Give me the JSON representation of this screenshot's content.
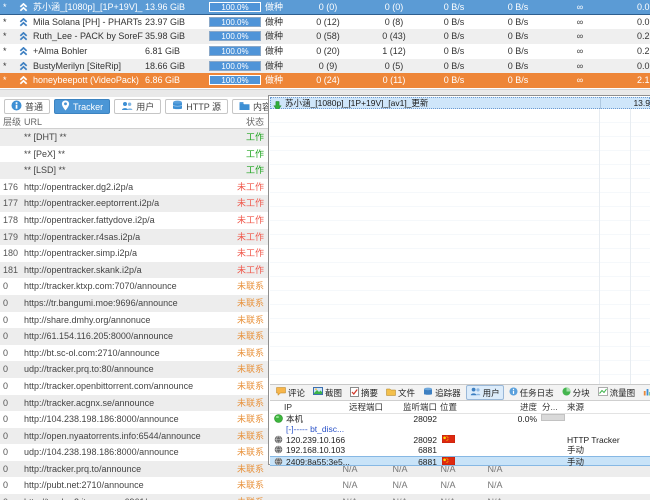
{
  "colors": {
    "selected_row_blue": "#5b9bd5",
    "highlight_row_orange": "#ee8638",
    "progress_fill_blue": "#4f94d8",
    "tab_selected_blue": "#4b96d6",
    "status_working_green": "#1da41d",
    "status_not_working_red": "#f0574a",
    "status_not_contacted_orange": "#e8923c",
    "overlay_selected_blue": "#c8e3f8"
  },
  "main_window": {
    "torrent_table": {
      "rows": [
        {
          "flag": "*",
          "name": "苏小涵_[1080p]_[1P+19V]_[a...",
          "size": "13.96 GiB",
          "progress": "100.0%",
          "status": "做种",
          "seeds": "0 (0)",
          "peers": "0 (0)",
          "down_speed": "0 B/s",
          "up_speed": "0 B/s",
          "eta": "∞",
          "ratio": "0.0",
          "state": "selected"
        },
        {
          "flag": "*",
          "name": "Mila Solana [PH] - PHARTs by...",
          "size": "23.97 GiB",
          "progress": "100.0%",
          "status": "做种",
          "seeds": "0 (12)",
          "peers": "0 (8)",
          "down_speed": "0 B/s",
          "up_speed": "0 B/s",
          "eta": "∞",
          "ratio": "0.0",
          "state": "white"
        },
        {
          "flag": "*",
          "name": "Ruth_Lee - PACK by SoreFor...",
          "size": "35.98 GiB",
          "progress": "100.0%",
          "status": "做种",
          "seeds": "0 (58)",
          "peers": "0 (43)",
          "down_speed": "0 B/s",
          "up_speed": "0 B/s",
          "eta": "∞",
          "ratio": "0.2",
          "state": "gray"
        },
        {
          "flag": "*",
          "name": "+Alma Bohler",
          "size": "6.81 GiB",
          "progress": "100.0%",
          "status": "做种",
          "seeds": "0 (20)",
          "peers": "1 (12)",
          "down_speed": "0 B/s",
          "up_speed": "0 B/s",
          "eta": "∞",
          "ratio": "0.2",
          "state": "white"
        },
        {
          "flag": "*",
          "name": "BustyMerilyn [SiteRip]",
          "size": "18.66 GiB",
          "progress": "100.0%",
          "status": "做种",
          "seeds": "0 (9)",
          "peers": "0 (5)",
          "down_speed": "0 B/s",
          "up_speed": "0 B/s",
          "eta": "∞",
          "ratio": "0.0",
          "state": "gray"
        },
        {
          "flag": "*",
          "name": "honeybeepott (VideoPack)",
          "size": "6.86 GiB",
          "progress": "100.0%",
          "status": "做种",
          "seeds": "0 (24)",
          "peers": "0 (11)",
          "down_speed": "0 B/s",
          "up_speed": "0 B/s",
          "eta": "∞",
          "ratio": "2.1",
          "state": "orange"
        }
      ]
    },
    "detail_tabs": [
      {
        "label": "普通",
        "icon": "info-icon",
        "selected": false
      },
      {
        "label": "Tracker",
        "icon": "pin-icon",
        "selected": true
      },
      {
        "label": "用户",
        "icon": "peers-icon",
        "selected": false
      },
      {
        "label": "HTTP 源",
        "icon": "http-sources-icon",
        "selected": false
      },
      {
        "label": "内容",
        "icon": "content-icon",
        "selected": false
      }
    ],
    "tracker_table": {
      "headers": {
        "tier": "层级",
        "url": "URL",
        "status": "状态"
      },
      "na_text": "N/A",
      "rows": [
        {
          "tier": "",
          "url": "** [DHT] **",
          "status": "工作",
          "status_type": "working",
          "na": false
        },
        {
          "tier": "",
          "url": "** [PeX] **",
          "status": "工作",
          "status_type": "working",
          "na": false
        },
        {
          "tier": "",
          "url": "** [LSD] **",
          "status": "工作",
          "status_type": "working",
          "na": false
        },
        {
          "tier": "176",
          "url": "http://opentracker.dg2.i2p/a",
          "status": "未工作",
          "status_type": "notworking",
          "na": false
        },
        {
          "tier": "177",
          "url": "http://opentracker.eeptorrent.i2p/a",
          "status": "未工作",
          "status_type": "notworking",
          "na": false
        },
        {
          "tier": "178",
          "url": "http://opentracker.fattydove.i2p/a",
          "status": "未工作",
          "status_type": "notworking",
          "na": false
        },
        {
          "tier": "179",
          "url": "http://opentracker.r4sas.i2p/a",
          "status": "未工作",
          "status_type": "notworking",
          "na": false
        },
        {
          "tier": "180",
          "url": "http://opentracker.simp.i2p/a",
          "status": "未工作",
          "status_type": "notworking",
          "na": false
        },
        {
          "tier": "181",
          "url": "http://opentracker.skank.i2p/a",
          "status": "未工作",
          "status_type": "notworking",
          "na": false
        },
        {
          "tier": "0",
          "url": "http://tracker.ktxp.com:7070/announce",
          "status": "未联系",
          "status_type": "idle",
          "na": false
        },
        {
          "tier": "0",
          "url": "https://tr.bangumi.moe:9696/announce",
          "status": "未联系",
          "status_type": "idle",
          "na": false
        },
        {
          "tier": "0",
          "url": "http://share.dmhy.org/annonuce",
          "status": "未联系",
          "status_type": "idle",
          "na": false
        },
        {
          "tier": "0",
          "url": "http://61.154.116.205:8000/announce",
          "status": "未联系",
          "status_type": "idle",
          "na": false
        },
        {
          "tier": "0",
          "url": "http://bt.sc-ol.com:2710/announce",
          "status": "未联系",
          "status_type": "idle",
          "na": false
        },
        {
          "tier": "0",
          "url": "udp://tracker.prq.to:80/announce",
          "status": "未联系",
          "status_type": "idle",
          "na": false
        },
        {
          "tier": "0",
          "url": "http://tracker.openbittorrent.com/announce",
          "status": "未联系",
          "status_type": "idle",
          "na": false
        },
        {
          "tier": "0",
          "url": "http://tracker.acgnx.se/announce",
          "status": "未联系",
          "status_type": "idle",
          "na": false
        },
        {
          "tier": "0",
          "url": "http://104.238.198.186:8000/announce",
          "status": "未联系",
          "status_type": "idle",
          "na": false
        },
        {
          "tier": "0",
          "url": "http://open.nyaatorrents.info:6544/announce",
          "status": "未联系",
          "status_type": "idle",
          "na": false
        },
        {
          "tier": "0",
          "url": "udp://104.238.198.186:8000/announce",
          "status": "未联系",
          "status_type": "idle",
          "na": false
        },
        {
          "tier": "0",
          "url": "http://tracker.prq.to/announce",
          "status": "未联系",
          "status_type": "idle",
          "na": true
        },
        {
          "tier": "0",
          "url": "http://pubt.net:2710/announce",
          "status": "未联系",
          "status_type": "idle",
          "na": true
        },
        {
          "tier": "0",
          "url": "http://tracker2.itzmx.com:6961/announce",
          "status": "未联系",
          "status_type": "idle",
          "na": true
        }
      ]
    }
  },
  "overlay_window": {
    "task_row": {
      "name": "苏小涵_[1080p]_[1P+19V]_[av1]_更新",
      "size": "13.9"
    },
    "tabs": [
      {
        "label": "评论",
        "icon": "comment-icon",
        "selected": false
      },
      {
        "label": "截图",
        "icon": "snapshot-icon",
        "selected": false
      },
      {
        "label": "摘要",
        "icon": "summary-icon",
        "selected": false
      },
      {
        "label": "文件",
        "icon": "files-icon",
        "selected": false
      },
      {
        "label": "追踪器",
        "icon": "tracker-icon",
        "selected": false
      },
      {
        "label": "用户",
        "icon": "users-icon",
        "selected": true
      },
      {
        "label": "任务日志",
        "icon": "log-icon",
        "selected": false
      },
      {
        "label": "分块",
        "icon": "pieces-icon",
        "selected": false
      },
      {
        "label": "流量图",
        "icon": "traffic-icon",
        "selected": false
      },
      {
        "label": "统计",
        "icon": "stats-icon",
        "selected": false
      }
    ],
    "peers_table": {
      "headers": {
        "ip": "IP",
        "remote_port": "远程端口",
        "listen_port": "监听端口",
        "location": "位置",
        "progress": "进度",
        "pieces": "分...",
        "source": "来源"
      },
      "rows": [
        {
          "ip": "本机",
          "icon": "local-peer-icon",
          "listen_port": "28092",
          "flag": false,
          "progress": "0.0%",
          "pieces_cell": true,
          "source": "",
          "selected": false,
          "link": false
        },
        {
          "ip": "[-]----- bt_disc...",
          "icon": "",
          "listen_port": "",
          "flag": false,
          "progress": "",
          "pieces_cell": false,
          "source": "",
          "selected": false,
          "link": true
        },
        {
          "ip": "120.239.10.166",
          "icon": "globe-icon",
          "listen_port": "28092",
          "flag": true,
          "progress": "",
          "pieces_cell": false,
          "source": "HTTP Tracker",
          "selected": false,
          "link": false
        },
        {
          "ip": "192.168.10.103",
          "icon": "globe-icon",
          "listen_port": "6881",
          "flag": false,
          "progress": "",
          "pieces_cell": false,
          "source": "手动",
          "selected": false,
          "link": false
        },
        {
          "ip": "2409:8a55:3e5...",
          "icon": "globe-icon",
          "listen_port": "6881",
          "flag": true,
          "progress": "",
          "pieces_cell": false,
          "source": "手动",
          "selected": true,
          "link": false
        }
      ]
    }
  }
}
